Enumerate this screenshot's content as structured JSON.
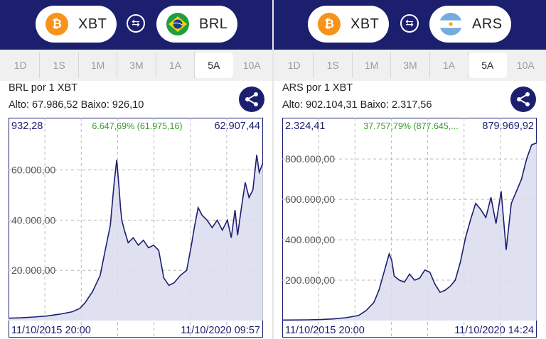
{
  "panels": [
    {
      "from": {
        "code": "XBT",
        "icon": "bitcoin-icon"
      },
      "to": {
        "code": "BRL",
        "icon": "brazil-flag-icon"
      },
      "tabs": [
        "1D",
        "1S",
        "1M",
        "3M",
        "1A",
        "5A",
        "10A"
      ],
      "active_tab": "5A",
      "pair_label": "BRL por 1 XBT",
      "high_low": "Alto: 67.986,52  Baixo: 926,10",
      "chart_data": {
        "type": "area",
        "start_value": "932,28",
        "change": "6.647,69% (61.975,16)",
        "end_value": "62.907,44",
        "start_label": "11/10/2015 20:00",
        "end_label": "11/10/2020 09:57",
        "y_ticks": [
          "20.000,00",
          "40.000,00",
          "60.000,00"
        ],
        "y_tick_values": [
          20000,
          40000,
          60000
        ],
        "ylim": [
          0,
          74000
        ],
        "x": [
          0,
          0.05,
          0.1,
          0.15,
          0.2,
          0.25,
          0.28,
          0.3,
          0.33,
          0.36,
          0.38,
          0.4,
          0.415,
          0.425,
          0.435,
          0.44,
          0.445,
          0.455,
          0.47,
          0.49,
          0.51,
          0.53,
          0.55,
          0.57,
          0.59,
          0.61,
          0.63,
          0.65,
          0.675,
          0.7,
          0.72,
          0.73,
          0.745,
          0.76,
          0.78,
          0.8,
          0.82,
          0.84,
          0.86,
          0.875,
          0.89,
          0.9,
          0.915,
          0.93,
          0.945,
          0.96,
          0.975,
          0.985,
          1.0
        ],
        "values": [
          932,
          1100,
          1400,
          1800,
          2500,
          3500,
          4800,
          7000,
          11500,
          18000,
          28000,
          38000,
          55000,
          64000,
          52000,
          45000,
          40000,
          36000,
          31000,
          33000,
          30000,
          32000,
          29000,
          30000,
          28000,
          17000,
          14000,
          15000,
          18000,
          20000,
          31000,
          37000,
          45000,
          42000,
          40000,
          37000,
          40000,
          36000,
          40000,
          33000,
          44000,
          34000,
          45000,
          55000,
          49000,
          52000,
          66000,
          59000,
          62907
        ]
      },
      "colors": {
        "line": "#1b1f6e",
        "fill": "#d9dcef"
      }
    },
    {
      "from": {
        "code": "XBT",
        "icon": "bitcoin-icon"
      },
      "to": {
        "code": "ARS",
        "icon": "argentina-flag-icon"
      },
      "tabs": [
        "1D",
        "1S",
        "1M",
        "3M",
        "1A",
        "5A",
        "10A"
      ],
      "active_tab": "5A",
      "pair_label": "ARS por 1 XBT",
      "high_low": "Alto: 902.104,31  Baixo: 2.317,56",
      "chart_data": {
        "type": "area",
        "start_value": "2.324,41",
        "change": "37.757,79% (877.645,...",
        "end_value": "879.969,92",
        "start_label": "11/10/2015 20:00",
        "end_label": "11/10/2020 14:24",
        "y_ticks": [
          "200.000,00",
          "400.000,00",
          "600.000,00",
          "800.000,00"
        ],
        "y_tick_values": [
          200000,
          400000,
          600000,
          800000
        ],
        "ylim": [
          0,
          920000
        ],
        "x": [
          0,
          0.05,
          0.1,
          0.15,
          0.2,
          0.25,
          0.3,
          0.33,
          0.36,
          0.38,
          0.4,
          0.42,
          0.43,
          0.44,
          0.46,
          0.48,
          0.5,
          0.52,
          0.54,
          0.56,
          0.58,
          0.6,
          0.62,
          0.64,
          0.66,
          0.68,
          0.7,
          0.72,
          0.74,
          0.76,
          0.78,
          0.8,
          0.82,
          0.84,
          0.86,
          0.88,
          0.9,
          0.92,
          0.94,
          0.96,
          0.98,
          1.0
        ],
        "values": [
          2324,
          2800,
          3500,
          5000,
          8000,
          14000,
          25000,
          50000,
          90000,
          150000,
          240000,
          330000,
          300000,
          220000,
          200000,
          190000,
          230000,
          200000,
          210000,
          250000,
          240000,
          180000,
          140000,
          150000,
          170000,
          200000,
          290000,
          410000,
          500000,
          580000,
          550000,
          510000,
          610000,
          480000,
          640000,
          350000,
          580000,
          640000,
          700000,
          800000,
          870000,
          880000
        ]
      },
      "colors": {
        "line": "#1b1f6e",
        "fill": "#d9dcef"
      }
    }
  ]
}
